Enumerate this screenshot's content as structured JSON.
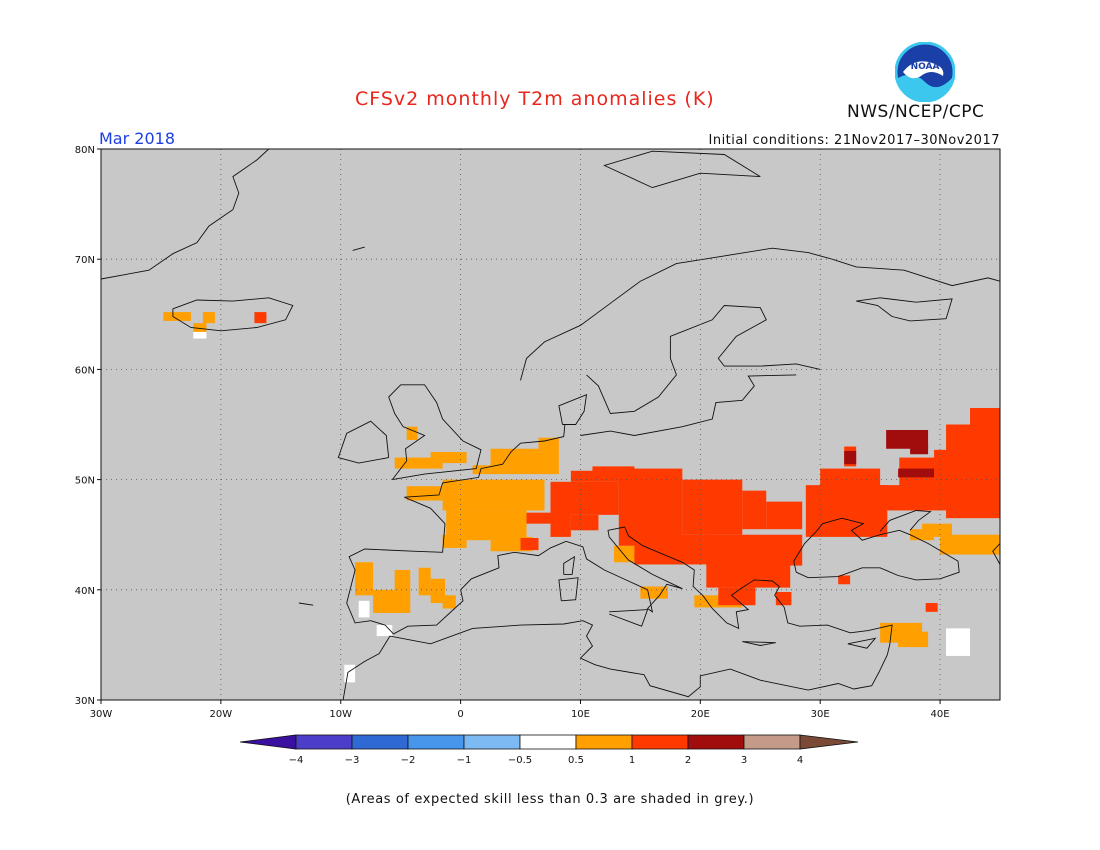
{
  "header": {
    "title": "CFSv2 monthly T2m anomalies (K)",
    "month": "Mar 2018",
    "initial_conditions": "Initial conditions: 21Nov2017–30Nov2017",
    "agency": "NWS/NCEP/CPC",
    "logo_text": "NOAA"
  },
  "map": {
    "region": "Europe",
    "lon_range": [
      -30,
      45
    ],
    "lat_range": [
      30,
      80
    ],
    "grid_lines": "dotted",
    "background_color": "#c8c8c8",
    "lat_labels": [
      "80N",
      "70N",
      "60N",
      "50N",
      "40N",
      "30N"
    ],
    "lon_labels": [
      "30W",
      "20W",
      "10W",
      "0",
      "10E",
      "20E",
      "30E",
      "40E"
    ]
  },
  "colorbar": {
    "tick_labels": [
      "−4",
      "−3",
      "−2",
      "−1",
      "−0.5",
      "0.5",
      "1",
      "2",
      "3",
      "4"
    ],
    "colors": [
      "#3a10a0",
      "#4d3ec9",
      "#2f69d4",
      "#4796ec",
      "#7db9f2",
      "#ffffff",
      "#ff9f00",
      "#ff3a00",
      "#a10c0c",
      "#c49a88",
      "#7a4a36"
    ]
  },
  "footnote": "(Areas of expected skill less than 0.3 are shaded in grey.)"
}
